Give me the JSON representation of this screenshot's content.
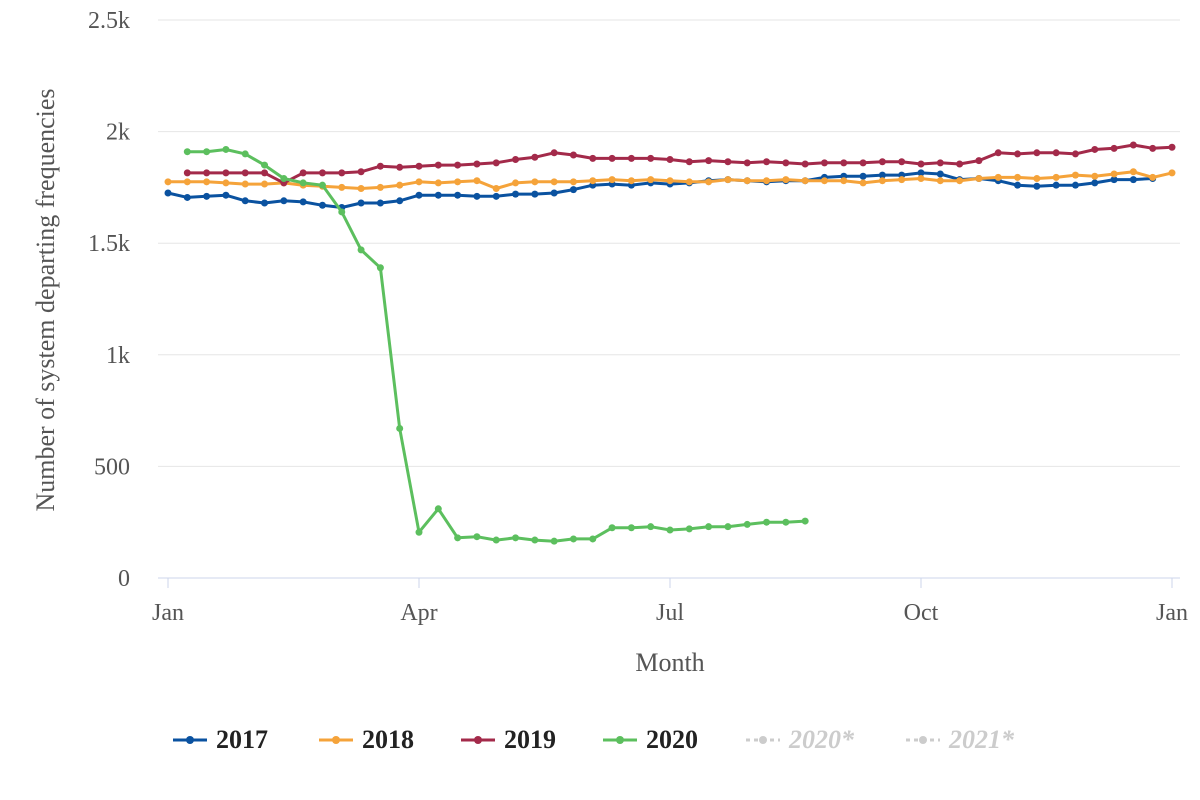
{
  "chart_data": {
    "type": "line",
    "title": "",
    "xlabel": "Month",
    "ylabel": "Number of system departing frequencies",
    "x_ticks": [
      "Jan",
      "Apr",
      "Jul",
      "Oct",
      "Jan"
    ],
    "y_ticks": [
      "0",
      "500",
      "1k",
      "1.5k",
      "2k",
      "2.5k"
    ],
    "ylim": [
      0,
      2500
    ],
    "xlim": [
      1,
      53
    ],
    "grid": true,
    "legend_position": "bottom",
    "series": [
      {
        "name": "2017",
        "color": "#0a52a0",
        "visible": true,
        "x": [
          1,
          2,
          3,
          4,
          5,
          6,
          7,
          8,
          9,
          10,
          11,
          12,
          13,
          14,
          15,
          16,
          17,
          18,
          19,
          20,
          21,
          22,
          23,
          24,
          25,
          26,
          27,
          28,
          29,
          30,
          31,
          32,
          33,
          34,
          35,
          36,
          37,
          38,
          39,
          40,
          41,
          42,
          43,
          44,
          45,
          46,
          47,
          48,
          49,
          50,
          51,
          52
        ],
        "y": [
          1725,
          1705,
          1710,
          1715,
          1690,
          1680,
          1690,
          1685,
          1670,
          1660,
          1680,
          1680,
          1690,
          1715,
          1715,
          1715,
          1710,
          1710,
          1720,
          1720,
          1725,
          1740,
          1760,
          1765,
          1760,
          1770,
          1765,
          1770,
          1780,
          1785,
          1780,
          1775,
          1780,
          1780,
          1795,
          1800,
          1800,
          1805,
          1805,
          1815,
          1810,
          1785,
          1790,
          1780,
          1760,
          1755,
          1760,
          1760,
          1770,
          1785,
          1785,
          1790
        ]
      },
      {
        "name": "2018",
        "color": "#f5a33a",
        "visible": true,
        "x": [
          1,
          2,
          3,
          4,
          5,
          6,
          7,
          8,
          9,
          10,
          11,
          12,
          13,
          14,
          15,
          16,
          17,
          18,
          19,
          20,
          21,
          22,
          23,
          24,
          25,
          26,
          27,
          28,
          29,
          30,
          31,
          32,
          33,
          34,
          35,
          36,
          37,
          38,
          39,
          40,
          41,
          42,
          43,
          44,
          45,
          46,
          47,
          48,
          49,
          50,
          51,
          52,
          53
        ],
        "y": [
          1775,
          1775,
          1775,
          1770,
          1765,
          1765,
          1770,
          1760,
          1755,
          1750,
          1745,
          1750,
          1760,
          1775,
          1770,
          1775,
          1780,
          1745,
          1770,
          1775,
          1775,
          1775,
          1780,
          1785,
          1780,
          1785,
          1780,
          1775,
          1775,
          1785,
          1780,
          1780,
          1785,
          1780,
          1780,
          1780,
          1770,
          1780,
          1785,
          1790,
          1780,
          1780,
          1790,
          1795,
          1795,
          1790,
          1795,
          1805,
          1800,
          1810,
          1820,
          1795,
          1815
        ]
      },
      {
        "name": "2019",
        "color": "#a32a4a",
        "visible": true,
        "x": [
          2,
          3,
          4,
          5,
          6,
          7,
          8,
          9,
          10,
          11,
          12,
          13,
          14,
          15,
          16,
          17,
          18,
          19,
          20,
          21,
          22,
          23,
          24,
          25,
          26,
          27,
          28,
          29,
          30,
          31,
          32,
          33,
          34,
          35,
          36,
          37,
          38,
          39,
          40,
          41,
          42,
          43,
          44,
          45,
          46,
          47,
          48,
          49,
          50,
          51,
          52,
          53
        ],
        "y": [
          1815,
          1815,
          1815,
          1815,
          1815,
          1770,
          1815,
          1815,
          1815,
          1820,
          1845,
          1840,
          1845,
          1850,
          1850,
          1855,
          1860,
          1875,
          1885,
          1905,
          1895,
          1880,
          1880,
          1880,
          1880,
          1875,
          1865,
          1870,
          1865,
          1860,
          1865,
          1860,
          1855,
          1860,
          1860,
          1860,
          1865,
          1865,
          1855,
          1860,
          1855,
          1870,
          1905,
          1900,
          1905,
          1905,
          1900,
          1920,
          1925,
          1940,
          1925,
          1930
        ]
      },
      {
        "name": "2020",
        "color": "#5cbf5e",
        "visible": true,
        "x": [
          2,
          3,
          4,
          5,
          6,
          7,
          8,
          9,
          10,
          11,
          12,
          13,
          14,
          15,
          16,
          17,
          18,
          19,
          20,
          21,
          22,
          23,
          24,
          25,
          26,
          27,
          28,
          29,
          30,
          31,
          32,
          33,
          34
        ],
        "y": [
          1910,
          1910,
          1920,
          1900,
          1850,
          1790,
          1770,
          1760,
          1640,
          1470,
          1390,
          670,
          205,
          310,
          180,
          185,
          170,
          180,
          170,
          165,
          175,
          175,
          225,
          225,
          230,
          215,
          220,
          230,
          230,
          240,
          250,
          250,
          255
        ]
      },
      {
        "name": "2020*",
        "color": "#cccccc",
        "visible": false,
        "x": [],
        "y": []
      },
      {
        "name": "2021*",
        "color": "#cccccc",
        "visible": false,
        "x": [],
        "y": []
      }
    ]
  }
}
